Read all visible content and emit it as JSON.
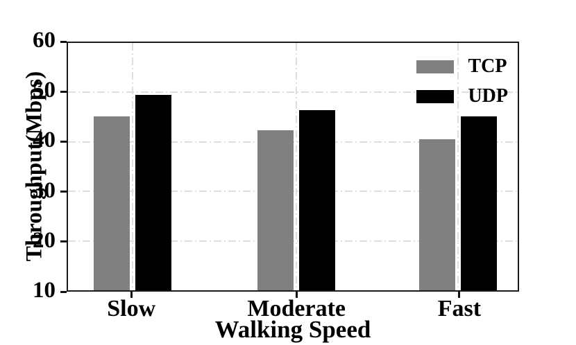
{
  "chart_data": {
    "type": "bar",
    "categories": [
      "Slow",
      "Moderate",
      "Fast"
    ],
    "series": [
      {
        "name": "TCP",
        "color": "#808080",
        "values": [
          45.2,
          42.4,
          40.6
        ]
      },
      {
        "name": "UDP",
        "color": "#000000",
        "values": [
          49.5,
          46.4,
          45.1
        ]
      }
    ],
    "xlabel": "Walking Speed",
    "ylabel": "Throughput(Mbps)",
    "ylim": [
      10,
      60
    ],
    "yticks": [
      10,
      20,
      30,
      40,
      50,
      60
    ],
    "grid": {
      "horizontal_at": [
        20,
        30,
        40,
        50
      ],
      "vertical_at_categories": true,
      "style": "dash-dot",
      "color": "#dedede"
    },
    "legend": {
      "position": "upper-right"
    },
    "axes": {
      "frame_color": "#1a1a1a",
      "tick_color": "#111111",
      "text_color": "#000000",
      "background": "#ffffff"
    }
  }
}
